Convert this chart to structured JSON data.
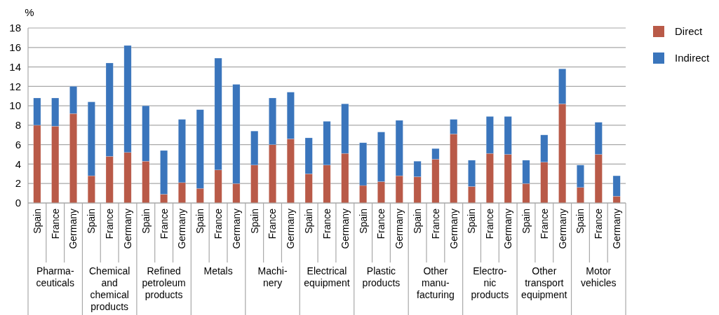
{
  "chart_data": {
    "type": "bar",
    "stacked": true,
    "ylabel": "%",
    "categories": [
      "Spain",
      "France",
      "Germany",
      "Spain",
      "France",
      "Germany",
      "Spain",
      "France",
      "Germany",
      "Spain",
      "France",
      "Germany",
      "Spain",
      "France",
      "Germany",
      "Spain",
      "France",
      "Germany",
      "Spain",
      "France",
      "Germany",
      "Spain",
      "France",
      "Germany",
      "Spain",
      "France",
      "Germany",
      "Spain",
      "France",
      "Germany",
      "Spain",
      "France",
      "Germany"
    ],
    "series": [
      {
        "name": "Direct",
        "color": "#b95a48",
        "values": [
          8.0,
          7.9,
          9.2,
          2.8,
          4.8,
          5.2,
          4.3,
          0.9,
          2.1,
          1.5,
          3.4,
          2.0,
          3.9,
          6.0,
          6.6,
          3.0,
          3.9,
          5.1,
          1.8,
          2.2,
          2.8,
          2.7,
          4.5,
          7.1,
          1.7,
          5.1,
          5.0,
          2.0,
          4.2,
          10.2,
          1.6,
          5.0,
          0.7
        ]
      },
      {
        "name": "Indirect",
        "color": "#3a75bc",
        "values": [
          2.8,
          2.9,
          2.8,
          7.6,
          9.6,
          11.0,
          5.7,
          4.5,
          6.5,
          8.1,
          11.5,
          10.2,
          3.5,
          4.8,
          4.8,
          3.7,
          4.5,
          5.1,
          4.4,
          5.1,
          5.7,
          1.6,
          1.1,
          1.5,
          2.7,
          3.8,
          3.9,
          2.4,
          2.8,
          3.6,
          2.3,
          3.3,
          2.1
        ]
      }
    ],
    "annotations": [
      "Pharma-\nceuticals",
      "Chemical\nand\nchemical\nproducts",
      "Refined\npetroleum\nproducts",
      "Metals",
      "Machi-\nnery",
      "Electrical\nequipment",
      "Plastic\nproducts",
      "Other\nmanu-\nfacturing",
      "Electro-\nnic\nproducts",
      "Other\ntransport\nequipment",
      "Motor\nvehicles"
    ],
    "ylim": [
      0,
      18
    ],
    "yticks": [
      0,
      2,
      4,
      6,
      8,
      10,
      12,
      14,
      16,
      18
    ],
    "grid": "y",
    "legend": "top right"
  }
}
